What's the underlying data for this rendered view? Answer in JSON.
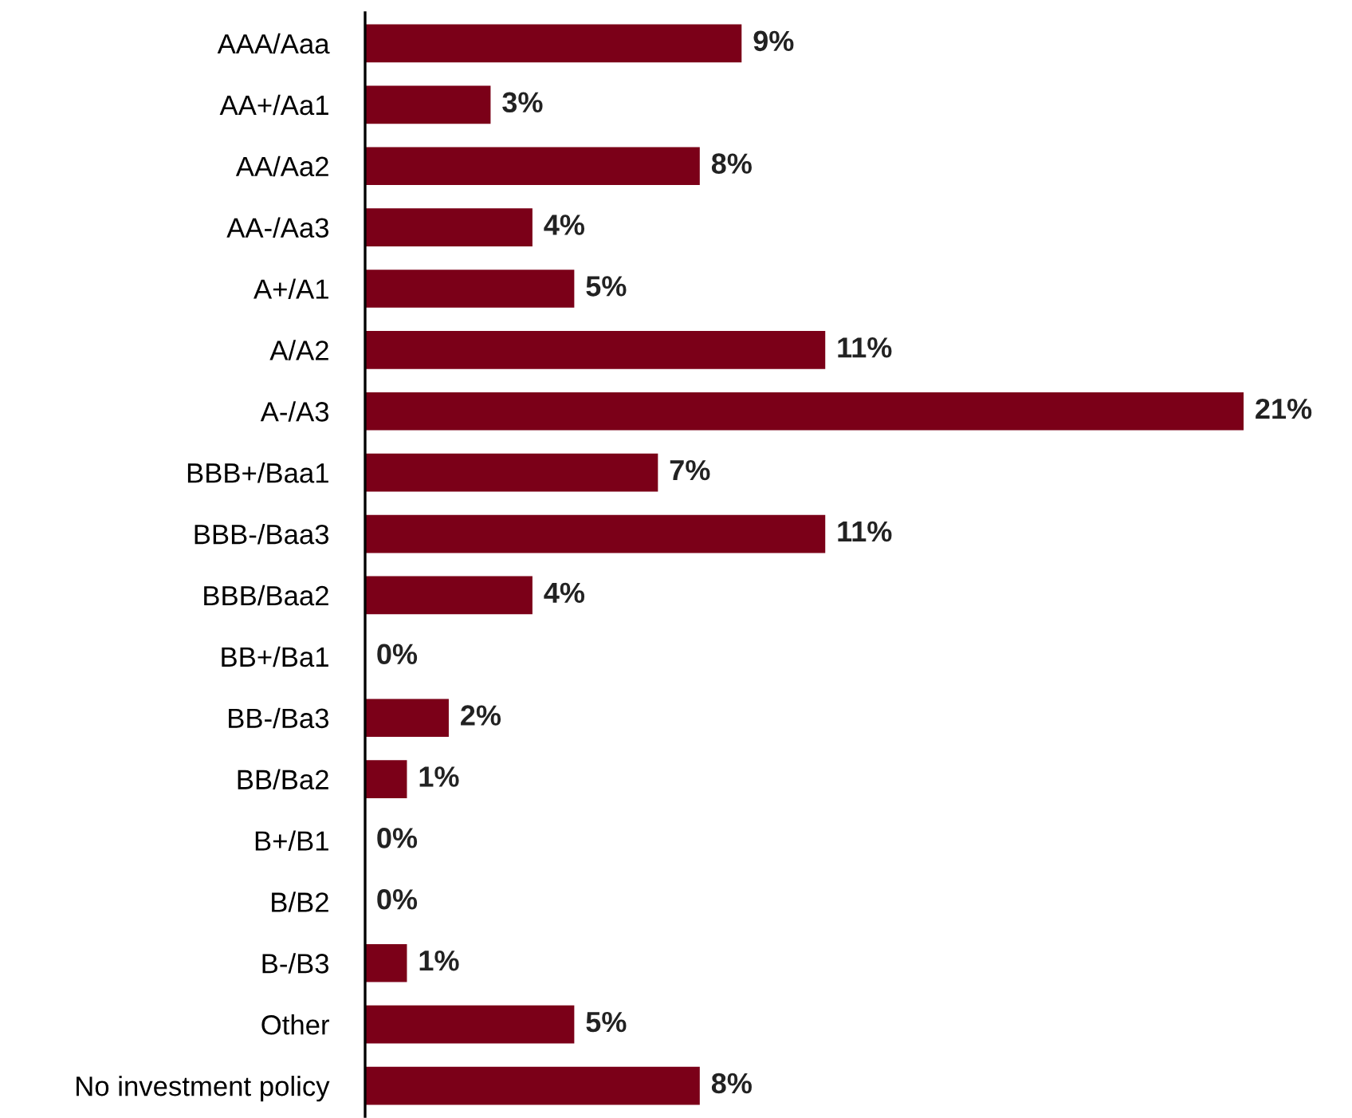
{
  "chart_data": {
    "type": "bar",
    "orientation": "horizontal",
    "categories": [
      "AAA/Aaa",
      "AA+/Aa1",
      "AA/Aa2",
      "AA-/Aa3",
      "A+/A1",
      "A/A2",
      "A-/A3",
      "BBB+/Baa1",
      "BBB-/Baa3",
      "BBB/Baa2",
      "BB+/Ba1",
      "BB-/Ba3",
      "BB/Ba2",
      "B+/B1",
      "B/B2",
      "B-/B3",
      "Other",
      "No investment policy"
    ],
    "values": [
      9,
      3,
      8,
      4,
      5,
      11,
      21,
      7,
      11,
      4,
      0,
      2,
      1,
      0,
      0,
      1,
      5,
      8
    ],
    "value_labels": [
      "9%",
      "3%",
      "8%",
      "4%",
      "5%",
      "11%",
      "21%",
      "7%",
      "11%",
      "4%",
      "0%",
      "2%",
      "1%",
      "0%",
      "0%",
      "1%",
      "5%",
      "8%"
    ],
    "color": "#7b0018",
    "grid": false,
    "legend": false
  }
}
